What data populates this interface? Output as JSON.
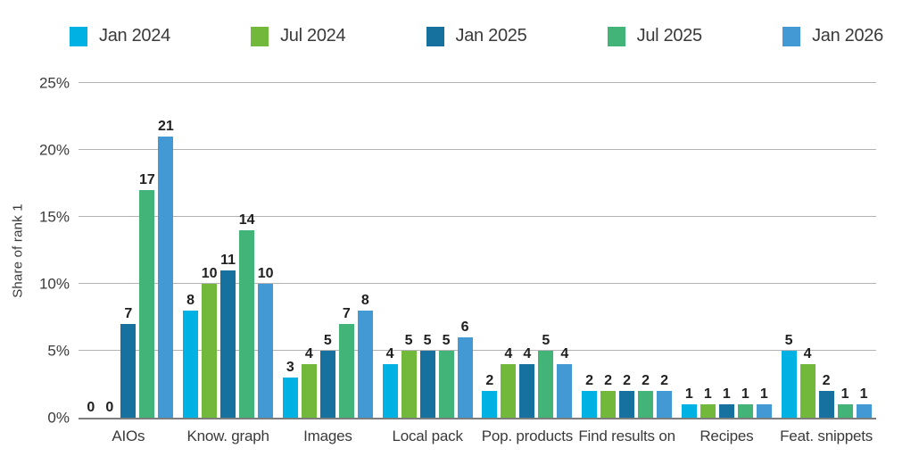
{
  "chart_data": {
    "type": "bar",
    "title": "",
    "xlabel": "",
    "ylabel": "Share of rank 1",
    "ylim": [
      0,
      25
    ],
    "yticks": [
      "0%",
      "5%",
      "10%",
      "15%",
      "20%",
      "25%"
    ],
    "grid": true,
    "legend_position": "top",
    "categories": [
      "AIOs",
      "Know. graph",
      "Images",
      "Local pack",
      "Pop. products",
      "Find results on",
      "Recipes",
      "Feat. snippets"
    ],
    "series": [
      {
        "name": "Jan 2024",
        "color": "#00b2e3",
        "values": [
          0,
          8,
          3,
          4,
          2,
          2,
          1,
          5
        ]
      },
      {
        "name": "Jul 2024",
        "color": "#72b83a",
        "values": [
          0,
          10,
          4,
          5,
          4,
          2,
          1,
          4
        ]
      },
      {
        "name": "Jan 2025",
        "color": "#17719e",
        "values": [
          7,
          11,
          5,
          5,
          4,
          2,
          1,
          2
        ]
      },
      {
        "name": "Jul 2025",
        "color": "#43b478",
        "values": [
          17,
          14,
          7,
          5,
          5,
          2,
          1,
          1
        ]
      },
      {
        "name": "Jan 2026",
        "color": "#4299d3",
        "values": [
          21,
          10,
          8,
          6,
          4,
          2,
          1,
          1
        ]
      }
    ],
    "colors": {
      "gridline": "#b3b3b3",
      "axis_line": "#7d7d7d",
      "text": "#3a3a3a",
      "value_label": "#1f1f1f"
    }
  }
}
